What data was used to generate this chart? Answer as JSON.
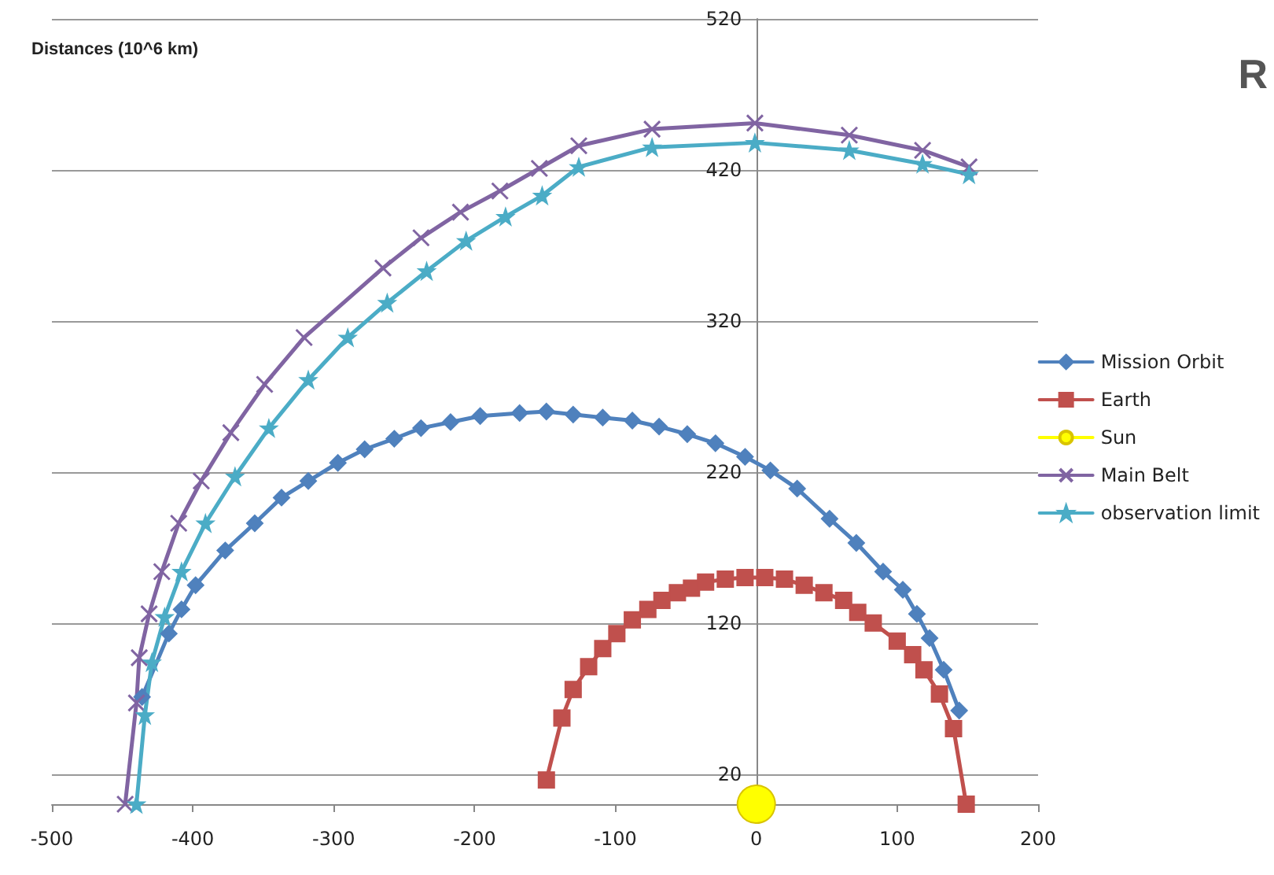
{
  "chart_data": {
    "type": "line",
    "ylabel": "Distances (10^6 km)",
    "annotations": [
      "R"
    ],
    "xlim": [
      -500,
      200
    ],
    "xticks": [
      -500,
      -400,
      -300,
      -200,
      -100,
      0,
      100,
      200
    ],
    "ylim": [
      0,
      520
    ],
    "yticks": [
      20,
      120,
      220,
      320,
      420,
      520
    ],
    "grid": "y",
    "legend": "right",
    "line_style": "solid",
    "series": [
      {
        "name": "Mission Orbit",
        "color": "#4f81bd",
        "marker": "diamond",
        "x": [
          -436,
          -417,
          -408,
          -398,
          -377,
          -356,
          -337,
          -318,
          -297,
          -278,
          -257,
          -238,
          -217,
          -196,
          -168,
          -149,
          -130,
          -109,
          -88,
          -69,
          -49,
          -29,
          -8,
          10,
          29,
          52,
          71,
          90,
          104,
          114,
          123,
          133,
          144
        ],
        "values": [
          71,
          113,
          129,
          145,
          168,
          186,
          203,
          214,
          226,
          235,
          242,
          249,
          253,
          257,
          259,
          260,
          258,
          256,
          254,
          250,
          245,
          239,
          230,
          221,
          209,
          189,
          173,
          154,
          142,
          126,
          110,
          89,
          62
        ]
      },
      {
        "name": "Earth",
        "color": "#c0504d",
        "marker": "square",
        "x": [
          -149,
          -138,
          -130,
          -119,
          -109,
          -99,
          -88,
          -77,
          -67,
          -56,
          -46,
          -36,
          -22,
          -8,
          6,
          20,
          34,
          48,
          62,
          72,
          83,
          100,
          111,
          119,
          130,
          140,
          149
        ],
        "values": [
          16,
          57,
          76,
          91,
          103,
          113,
          122,
          129,
          135,
          140,
          143,
          147,
          149,
          150,
          150,
          149,
          145,
          140,
          135,
          127,
          120,
          108,
          99,
          89,
          73,
          50,
          0
        ]
      },
      {
        "name": "Sun",
        "color": "#ffff00",
        "marker": "circle",
        "x": [
          0
        ],
        "values": [
          0
        ]
      },
      {
        "name": "Main Belt",
        "color": "#8064a2",
        "marker": "cross",
        "x": [
          -448,
          -440,
          -438,
          -431,
          -422,
          -410,
          -394,
          -373,
          -349,
          -321,
          -265,
          -238,
          -210,
          -182,
          -154,
          -126,
          -74,
          -1,
          66,
          118,
          151
        ],
        "values": [
          0,
          67,
          97,
          126,
          154,
          186,
          214,
          246,
          278,
          309,
          355,
          375,
          392,
          406,
          421,
          436,
          447,
          451,
          443,
          433,
          422
        ]
      },
      {
        "name": "observation limit",
        "color": "#4bacc6",
        "marker": "star",
        "x": [
          -440,
          -434,
          -429,
          -420,
          -408,
          -391,
          -370,
          -346,
          -318,
          -290,
          -262,
          -234,
          -206,
          -178,
          -152,
          -126,
          -74,
          -1,
          66,
          118,
          151
        ],
        "values": [
          0,
          59,
          94,
          124,
          154,
          186,
          217,
          249,
          281,
          309,
          332,
          353,
          373,
          389,
          403,
          422,
          435,
          438,
          433,
          424,
          417
        ]
      }
    ]
  }
}
